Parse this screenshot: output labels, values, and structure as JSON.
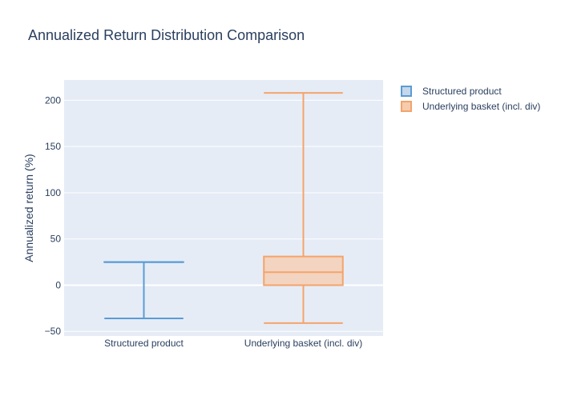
{
  "chart_data": {
    "type": "box",
    "title": "Annualized Return Distribution Comparison",
    "xlabel": "",
    "ylabel": "Annualized return (%)",
    "ylim": [
      -55,
      222
    ],
    "yticks": [
      -50,
      0,
      50,
      100,
      150,
      200
    ],
    "ytick_labels": [
      "−50",
      "0",
      "50",
      "100",
      "150",
      "200"
    ],
    "categories": [
      "Structured product",
      "Underlying basket (incl. div)"
    ],
    "series": [
      {
        "name": "Structured product",
        "color": "#5b9bd5",
        "fill": "#c5d7ea",
        "min": -36,
        "q1": 25,
        "median": 25,
        "q3": 25,
        "max": 25
      },
      {
        "name": "Underlying basket (incl. div)",
        "color": "#f5a36a",
        "fill": "#f5ccae",
        "min": -41,
        "q1": 0,
        "median": 14,
        "q3": 31,
        "max": 208
      }
    ],
    "legend_position": "top-right",
    "grid": true,
    "plot_bg": "#e5ecf6"
  }
}
